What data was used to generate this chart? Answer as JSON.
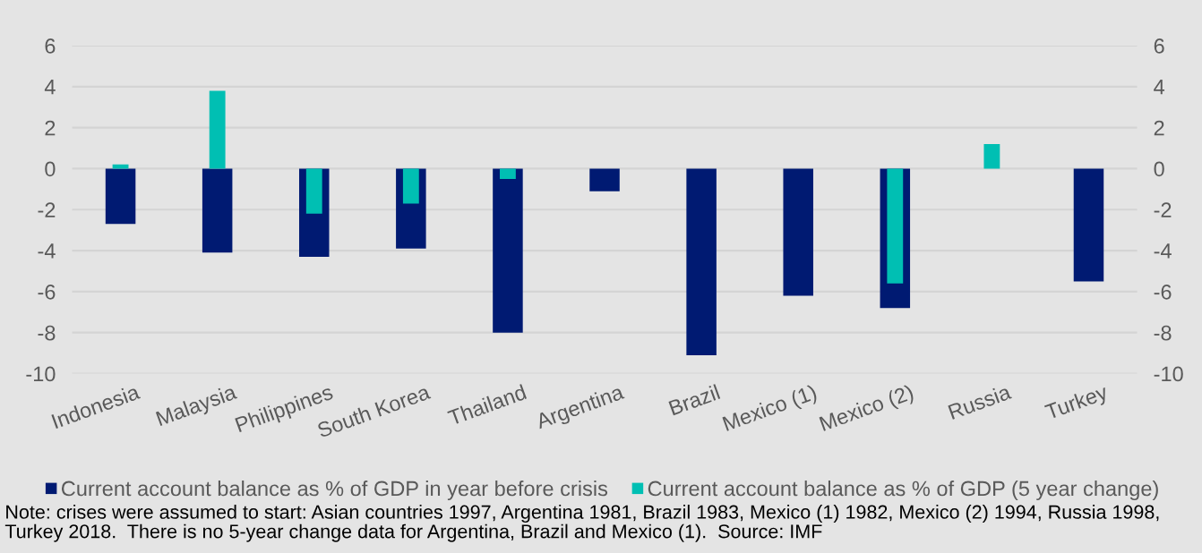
{
  "chart_data": {
    "type": "bar",
    "categories": [
      "Indonesia",
      "Malaysia",
      "Philippines",
      "South Korea",
      "Thailand",
      "Argentina",
      "Brazil",
      "Mexico (1)",
      "Mexico (2)",
      "Russia",
      "Turkey"
    ],
    "series": [
      {
        "name": "Current account balance as % of GDP in year before crisis",
        "color": "#001a72",
        "values": [
          -2.7,
          -4.1,
          -4.3,
          -3.9,
          -8.0,
          -1.1,
          -9.1,
          -6.2,
          -6.8,
          null,
          -5.5
        ]
      },
      {
        "name": "Current account balance as % of GDP (5 year change)",
        "color": "#00bfb3",
        "axis": "y2",
        "values": [
          0.2,
          3.8,
          -2.2,
          -1.7,
          -0.5,
          null,
          null,
          null,
          -5.6,
          1.2,
          null
        ]
      }
    ],
    "ylim": [
      -10,
      6
    ],
    "yticks": [
      -10,
      -8,
      -6,
      -4,
      -2,
      0,
      2,
      4,
      6
    ],
    "y2lim": [
      -10,
      6
    ],
    "y2ticks": [
      -10,
      -8,
      -6,
      -4,
      -2,
      0,
      2,
      4,
      6
    ],
    "grid": "y",
    "legend": "bottom",
    "annotations": [
      "Note: crises were assumed to start: Asian countries 1997, Argentina 1981, Brazil 1983, Mexico (1) 1982, Mexico (2) 1994, Russia 1998, Turkey 2018.  There is no 5-year change data for Argentina, Brazil and Mexico (1).  Source: IMF"
    ]
  }
}
